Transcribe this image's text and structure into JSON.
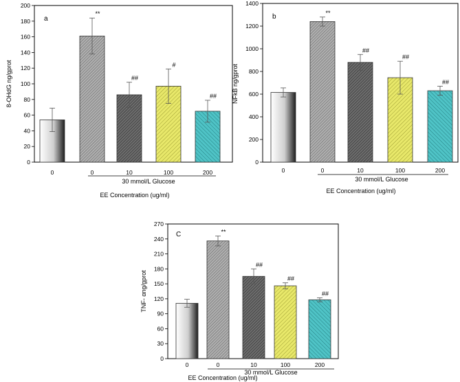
{
  "chart_data": [
    {
      "type": "bar",
      "panel_label": "a",
      "categories": [
        "0",
        "0",
        "10",
        "100",
        "200"
      ],
      "values": [
        54,
        161,
        86,
        97,
        65
      ],
      "errors": [
        15,
        23,
        16,
        22,
        14
      ],
      "annotations": [
        "",
        "**",
        "##",
        "#",
        "##"
      ],
      "ylabel": "8-OHdG ng/gprot",
      "ylim": [
        0,
        200
      ],
      "yticks": [
        "0",
        "20",
        "40",
        "60",
        "80",
        "100",
        "120",
        "140",
        "160",
        "180",
        "200"
      ],
      "group_label": "30 mmol/L Glucose",
      "xlabel": "EE Concentration (ug/ml)"
    },
    {
      "type": "bar",
      "panel_label": "b",
      "categories": [
        "0",
        "0",
        "10",
        "100",
        "200"
      ],
      "values": [
        615,
        1240,
        880,
        745,
        630
      ],
      "errors": [
        40,
        40,
        70,
        145,
        40
      ],
      "annotations": [
        "",
        "**",
        "##",
        "##",
        "##"
      ],
      "ylabel": "NFkB ng/gprot",
      "ylim": [
        0,
        1400
      ],
      "yticks": [
        "0",
        "200",
        "400",
        "600",
        "800",
        "1000",
        "1200",
        "1400"
      ],
      "group_label": "30 mmol/L Glucose",
      "xlabel": "EE Concentration (ug/ml)"
    },
    {
      "type": "bar",
      "panel_label": "C",
      "categories": [
        "0",
        "0",
        "10",
        "100",
        "200"
      ],
      "values": [
        111,
        236,
        165,
        146,
        118
      ],
      "errors": [
        8,
        10,
        15,
        6,
        4
      ],
      "annotations": [
        "",
        "**",
        "##",
        "##",
        "##"
      ],
      "ylabel": "TNF- αng/gprot",
      "ylim": [
        0,
        270
      ],
      "yticks": [
        "0",
        "30",
        "60",
        "90",
        "120",
        "150",
        "180",
        "210",
        "240",
        "270"
      ],
      "group_label": "30 mmol/L Glucose",
      "xlabel": "EE Concentration (ug/ml)"
    }
  ]
}
